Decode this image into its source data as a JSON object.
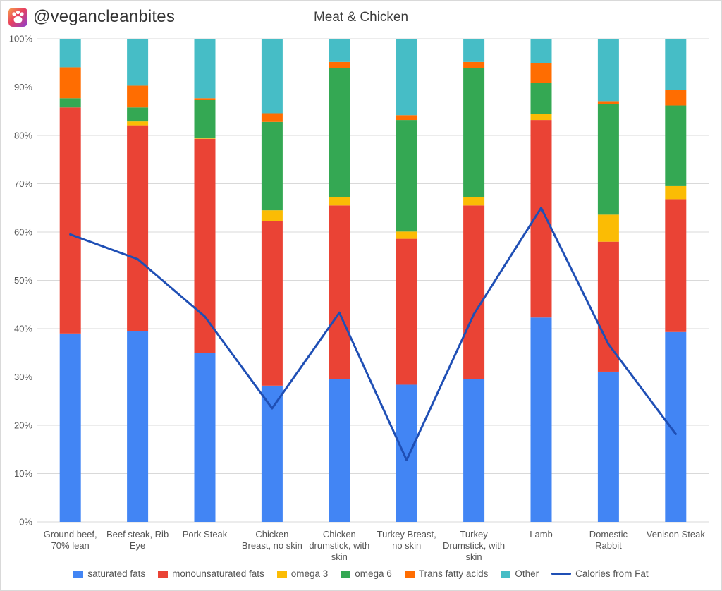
{
  "brand": {
    "handle": "@vegancleanbites",
    "logo_icon": "paw-print-icon"
  },
  "chart_data": {
    "type": "bar",
    "stacked": true,
    "percent_stacked": true,
    "title": "Meat & Chicken",
    "xlabel": "",
    "ylabel": "",
    "ylim": [
      0,
      100
    ],
    "y_ticks": [
      "0%",
      "10%",
      "20%",
      "30%",
      "40%",
      "50%",
      "60%",
      "70%",
      "80%",
      "90%",
      "100%"
    ],
    "grid": true,
    "legend_position": "bottom",
    "categories": [
      [
        "Ground beef,",
        "70% lean"
      ],
      [
        "Beef steak, Rib",
        "Eye"
      ],
      [
        "Pork Steak"
      ],
      [
        "Chicken",
        "Breast, no skin"
      ],
      [
        "Chicken",
        "drumstick, with",
        "skin"
      ],
      [
        "Turkey Breast,",
        "no skin"
      ],
      [
        "Turkey",
        "Drumstick, with",
        "skin"
      ],
      [
        "Lamb"
      ],
      [
        "Domestic",
        "Rabbit"
      ],
      [
        "Venison Steak"
      ]
    ],
    "series": [
      {
        "name": "saturated fats",
        "color": "#4285f4",
        "values": [
          39,
          39.5,
          35,
          28.2,
          29.5,
          28.4,
          29.5,
          42.3,
          31.1,
          39.3
        ]
      },
      {
        "name": "monounsaturated fats",
        "color": "#ea4335",
        "values": [
          46.8,
          42.6,
          44.3,
          34.1,
          36,
          30.2,
          36,
          40.9,
          26.9,
          27.5
        ]
      },
      {
        "name": "omega 3",
        "color": "#fbbc04",
        "values": [
          0,
          0.8,
          0.1,
          2.2,
          1.8,
          1.5,
          1.8,
          1.3,
          5.6,
          2.7
        ]
      },
      {
        "name": "omega 6",
        "color": "#34a853",
        "values": [
          1.9,
          2.9,
          7.9,
          18.3,
          26.6,
          23.1,
          26.6,
          6.4,
          22.9,
          16.7
        ]
      },
      {
        "name": "Trans fatty acids",
        "color": "#ff6d01",
        "values": [
          6.4,
          4.5,
          0.4,
          1.8,
          1.3,
          1.0,
          1.3,
          4.1,
          0.6,
          3.2
        ]
      },
      {
        "name": "Other",
        "color": "#46bdc6",
        "values": [
          5.9,
          9.7,
          12.3,
          15.4,
          4.8,
          15.8,
          4.8,
          5.0,
          12.9,
          10.6
        ]
      }
    ],
    "line_series": {
      "name": "Calories from Fat",
      "color": "#1f4fb5",
      "values": [
        59.5,
        54.4,
        42.5,
        23.5,
        43.3,
        12.8,
        43.0,
        65.0,
        36.8,
        18.2
      ]
    }
  }
}
